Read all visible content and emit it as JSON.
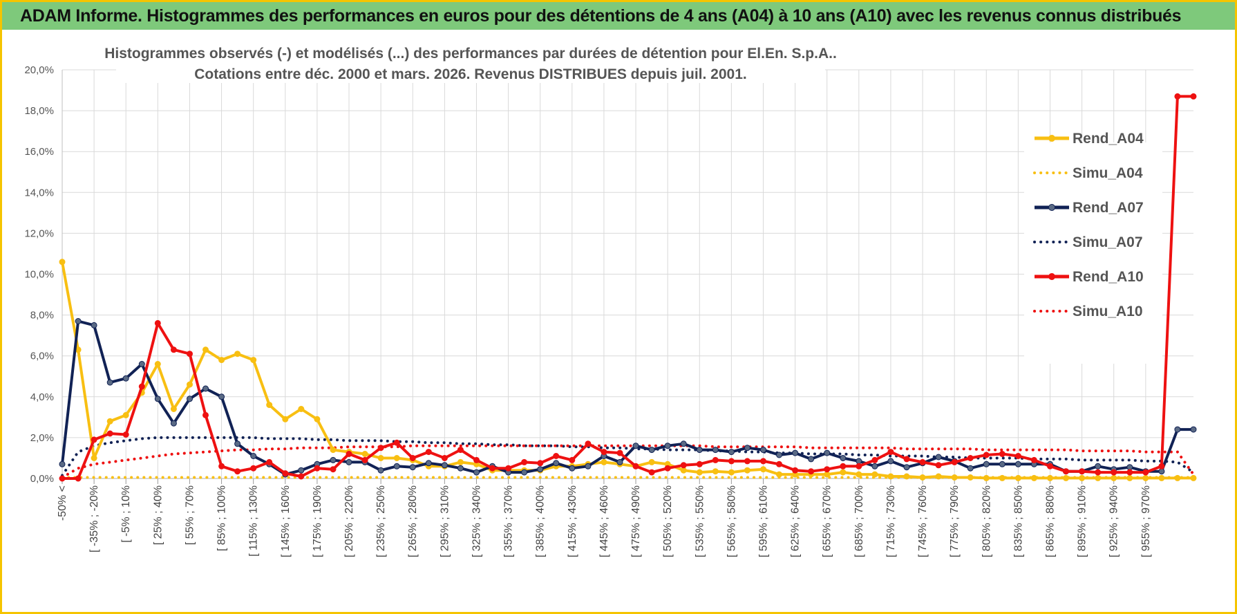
{
  "banner": {
    "title": "ADAM Informe. Histogrammes des performances en euros pour des détentions de 4 ans (A04) à 10 ans (A10) avec les revenus connus distribués"
  },
  "colors": {
    "banner_bg": "#7ec97b",
    "frame": "#f5c400",
    "A04": "#f8bf12",
    "A07": "#112255",
    "A10": "#ee1111"
  },
  "chart_data": {
    "type": "line",
    "title": "Histogrammes observés (-) et modélisés (...) des performances par durées de détention pour El.En. S.p.A..",
    "subtitle": "Cotations entre déc. 2000 et mars. 2026. Revenus DISTRIBUES depuis juil. 2001.",
    "xlabel": "",
    "ylabel": "",
    "ylim": [
      0,
      20
    ],
    "yticks": [
      "0,0%",
      "2,0%",
      "4,0%",
      "6,0%",
      "8,0%",
      "10,0%",
      "12,0%",
      "14,0%",
      "16,0%",
      "18,0%",
      "20,0%"
    ],
    "grid": true,
    "legend_position": "right",
    "n_categories": 72,
    "x_tick_labels": [
      "-50% <",
      "[ -35% ; -20%",
      "[ -5% ; 10%",
      "[ 25% ; 40%",
      "[ 55% ; 70%",
      "[ 85% ; 100%",
      "[ 115% ; 130%",
      "[ 145% ; 160%",
      "[ 175% ; 190%",
      "[ 205% ; 220%",
      "[ 235% ; 250%",
      "[ 265% ; 280%",
      "[ 295% ; 310%",
      "[ 325% ; 340%",
      "[ 355% ; 370%",
      "[ 385% ; 400%",
      "[ 415% ; 430%",
      "[ 445% ; 460%",
      "[ 475% ; 490%",
      "[ 505% ; 520%",
      "[ 535% ; 550%",
      "[ 565% ; 580%",
      "[ 595% ; 610%",
      "[ 625% ; 640%",
      "[ 655% ; 670%",
      "[ 685% ; 700%",
      "[ 715% ; 730%",
      "[ 745% ; 760%",
      "[ 775% ; 790%",
      "[ 805% ; 820%",
      "[ 835% ; 850%",
      "[ 865% ; 880%",
      "[ 895% ; 910%",
      "[ 925% ; 940%",
      "[ 955% ; 970%"
    ],
    "x_tick_positions": [
      0,
      2,
      4,
      6,
      8,
      10,
      12,
      14,
      16,
      18,
      20,
      22,
      24,
      26,
      28,
      30,
      32,
      34,
      36,
      38,
      40,
      42,
      44,
      46,
      48,
      50,
      52,
      54,
      56,
      58,
      60,
      62,
      64,
      66,
      68
    ],
    "series": [
      {
        "name": "Rend_A04",
        "style": "solid",
        "color": "#f8bf12",
        "values": [
          10.6,
          6.3,
          1.0,
          2.8,
          3.1,
          4.2,
          5.6,
          3.4,
          4.6,
          6.3,
          5.8,
          6.1,
          5.8,
          3.6,
          2.9,
          3.4,
          2.9,
          1.4,
          1.3,
          1.2,
          1.0,
          1.0,
          0.9,
          0.6,
          0.6,
          0.8,
          0.7,
          0.4,
          0.4,
          0.4,
          0.4,
          0.6,
          0.6,
          0.7,
          0.8,
          0.7,
          0.6,
          0.8,
          0.7,
          0.4,
          0.3,
          0.35,
          0.3,
          0.4,
          0.45,
          0.2,
          0.2,
          0.2,
          0.2,
          0.3,
          0.2,
          0.2,
          0.1,
          0.1,
          0.05,
          0.1,
          0.05,
          0.05,
          0.02,
          0.02,
          0.02,
          0.02,
          0.02,
          0.02,
          0.02,
          0.02,
          0.02,
          0.02,
          0.02,
          0.02,
          0.02,
          0.02
        ]
      },
      {
        "name": "Simu_A04",
        "style": "dotted",
        "color": "#f8bf12",
        "values": [
          0.05,
          0.05,
          0.05,
          0.05,
          0.05,
          0.05,
          0.05,
          0.05,
          0.05,
          0.05,
          0.05,
          0.05,
          0.05,
          0.05,
          0.05,
          0.05,
          0.05,
          0.05,
          0.05,
          0.05,
          0.05,
          0.05,
          0.05,
          0.05,
          0.05,
          0.05,
          0.05,
          0.05,
          0.05,
          0.05,
          0.05,
          0.05,
          0.05,
          0.05,
          0.05,
          0.05,
          0.05,
          0.05,
          0.05,
          0.05,
          0.05,
          0.05,
          0.05,
          0.05,
          0.05,
          0.05,
          0.05,
          0.05,
          0.05,
          0.05,
          0.05,
          0.05,
          0.05,
          0.05,
          0.05,
          0.05,
          0.05,
          0.05,
          0.05,
          0.05,
          0.05,
          0.05,
          0.05,
          0.05,
          0.05,
          0.05,
          0.05,
          0.05,
          0.05,
          0.05,
          0.05,
          0.05
        ]
      },
      {
        "name": "Rend_A07",
        "style": "solid",
        "color": "#112255",
        "values": [
          0.7,
          7.7,
          7.5,
          4.7,
          4.9,
          5.6,
          3.9,
          2.7,
          3.9,
          4.4,
          4.0,
          1.7,
          1.1,
          0.7,
          0.2,
          0.4,
          0.7,
          0.9,
          0.8,
          0.8,
          0.4,
          0.6,
          0.55,
          0.75,
          0.65,
          0.5,
          0.3,
          0.6,
          0.3,
          0.3,
          0.45,
          0.75,
          0.5,
          0.6,
          1.1,
          0.8,
          1.6,
          1.4,
          1.6,
          1.7,
          1.4,
          1.4,
          1.3,
          1.5,
          1.4,
          1.15,
          1.25,
          0.95,
          1.25,
          1.0,
          0.85,
          0.6,
          0.85,
          0.55,
          0.75,
          1.05,
          0.85,
          0.5,
          0.7,
          0.7,
          0.7,
          0.7,
          0.7,
          0.35,
          0.35,
          0.6,
          0.45,
          0.55,
          0.35,
          0.35,
          2.4,
          2.4
        ]
      },
      {
        "name": "Simu_A07",
        "style": "dotted",
        "color": "#112255",
        "values": [
          0.15,
          1.3,
          1.6,
          1.75,
          1.85,
          1.95,
          2.0,
          2.0,
          2.0,
          2.0,
          2.0,
          2.0,
          2.0,
          1.95,
          1.95,
          1.95,
          1.9,
          1.9,
          1.85,
          1.85,
          1.85,
          1.8,
          1.8,
          1.75,
          1.75,
          1.7,
          1.7,
          1.65,
          1.65,
          1.6,
          1.6,
          1.6,
          1.55,
          1.55,
          1.5,
          1.5,
          1.45,
          1.45,
          1.4,
          1.4,
          1.4,
          1.35,
          1.35,
          1.3,
          1.3,
          1.25,
          1.25,
          1.2,
          1.2,
          1.2,
          1.15,
          1.15,
          1.1,
          1.1,
          1.1,
          1.05,
          1.05,
          1.0,
          1.0,
          1.0,
          1.0,
          0.95,
          0.95,
          0.95,
          0.9,
          0.9,
          0.9,
          0.9,
          0.85,
          0.85,
          0.8,
          0.3
        ]
      },
      {
        "name": "Rend_A10",
        "style": "solid",
        "color": "#ee1111",
        "values": [
          0.0,
          0.0,
          1.9,
          2.2,
          2.15,
          4.5,
          7.6,
          6.3,
          6.1,
          3.1,
          0.6,
          0.35,
          0.5,
          0.8,
          0.25,
          0.1,
          0.5,
          0.45,
          1.2,
          0.9,
          1.5,
          1.75,
          1.0,
          1.3,
          1.0,
          1.4,
          0.9,
          0.5,
          0.5,
          0.8,
          0.75,
          1.1,
          0.9,
          1.7,
          1.3,
          1.25,
          0.6,
          0.3,
          0.5,
          0.65,
          0.7,
          0.9,
          0.85,
          0.85,
          0.85,
          0.7,
          0.4,
          0.35,
          0.45,
          0.6,
          0.6,
          0.9,
          1.3,
          0.95,
          0.8,
          0.65,
          0.8,
          1.0,
          1.15,
          1.2,
          1.1,
          0.9,
          0.6,
          0.35,
          0.35,
          0.3,
          0.3,
          0.3,
          0.3,
          0.6,
          18.7,
          18.7
        ]
      },
      {
        "name": "Simu_A10",
        "style": "dotted",
        "color": "#ee1111",
        "values": [
          0.05,
          0.5,
          0.7,
          0.8,
          0.9,
          1.0,
          1.1,
          1.2,
          1.25,
          1.3,
          1.35,
          1.4,
          1.4,
          1.45,
          1.45,
          1.5,
          1.5,
          1.5,
          1.55,
          1.55,
          1.55,
          1.55,
          1.6,
          1.6,
          1.6,
          1.6,
          1.6,
          1.6,
          1.6,
          1.6,
          1.6,
          1.6,
          1.6,
          1.6,
          1.6,
          1.6,
          1.6,
          1.6,
          1.6,
          1.6,
          1.6,
          1.55,
          1.55,
          1.55,
          1.55,
          1.55,
          1.55,
          1.5,
          1.5,
          1.5,
          1.5,
          1.5,
          1.5,
          1.45,
          1.45,
          1.45,
          1.45,
          1.45,
          1.4,
          1.4,
          1.4,
          1.4,
          1.4,
          1.4,
          1.35,
          1.35,
          1.35,
          1.35,
          1.3,
          1.3,
          1.3,
          0.2
        ]
      }
    ]
  }
}
